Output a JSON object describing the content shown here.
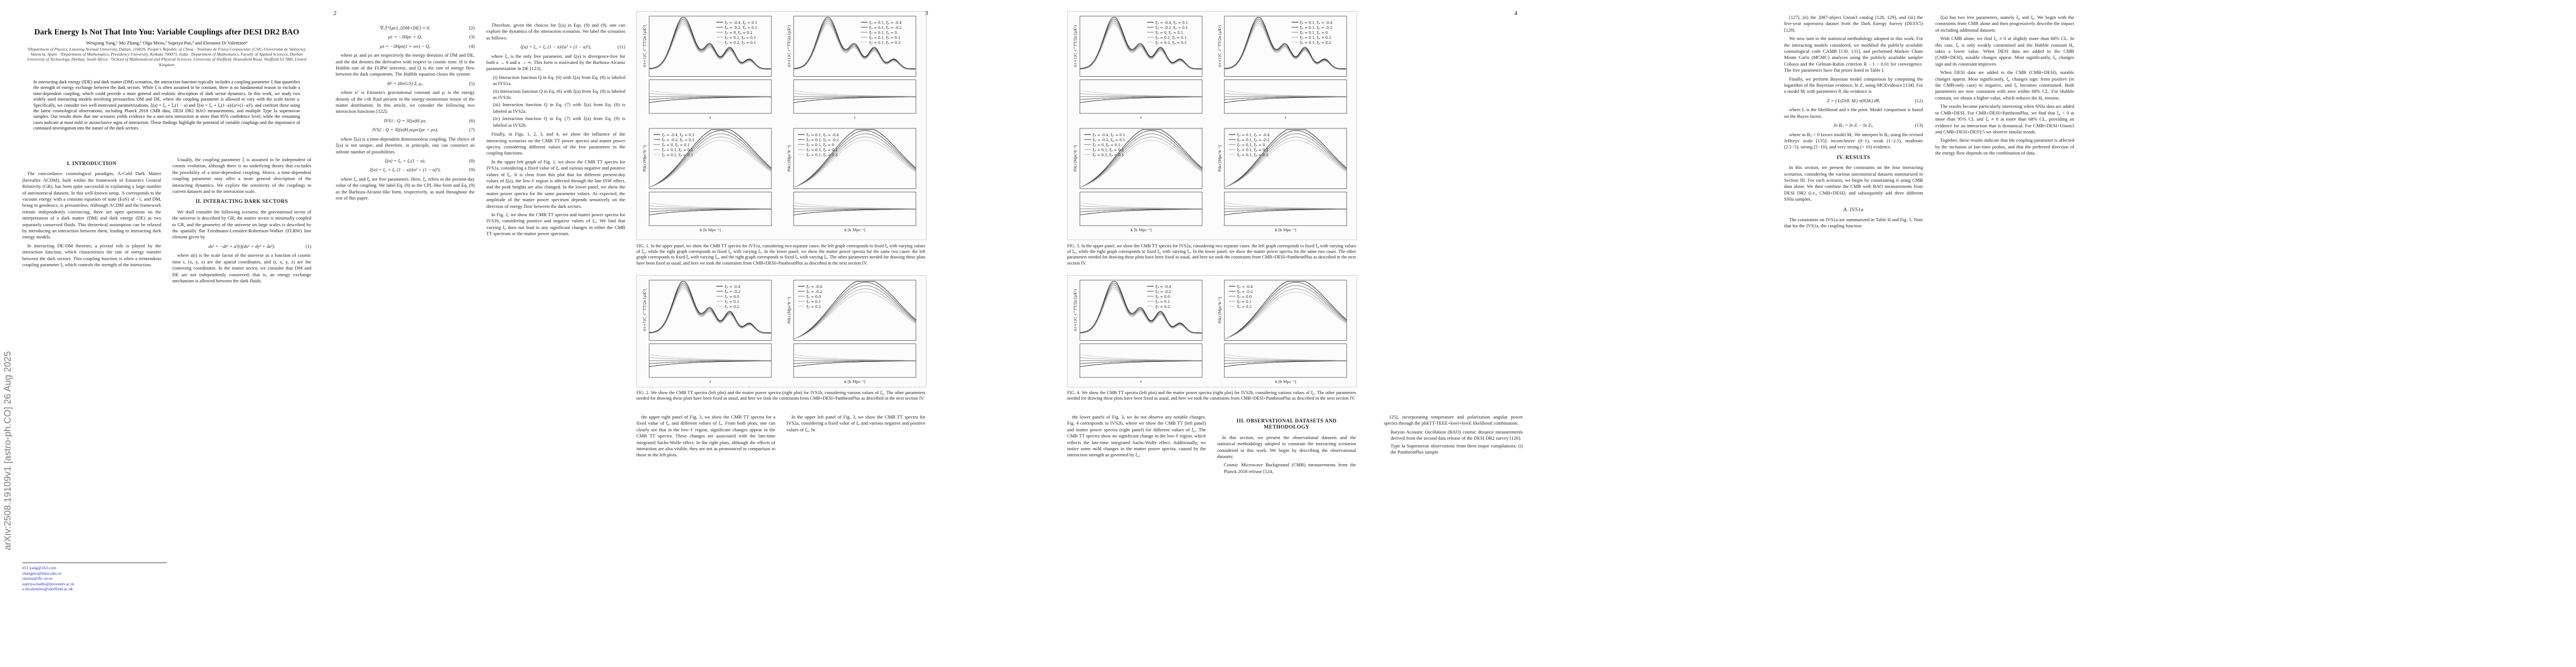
{
  "arxiv_stamp": "arXiv:2508.19109v1  [astro-ph.CO]  26 Aug 2025",
  "page_numbers": [
    "2",
    "3",
    "4"
  ],
  "page1": {
    "title": "Dark Energy Is Not That Into You: Variable Couplings after DESI DR2 BAO",
    "authors": "Weiqiang Yang,¹ Mo Zhang,¹ Olga Mena,² Supriya Pan,³ and Eleonora Di Valentino⁴",
    "affiliations": "¹Department of Physics, Liaoning Normal University, Dalian, 116029, People's Republic of China · ²Instituto de Física Corpuscular (CSIC-Universitat de València), Valencia, Spain · ³Department of Mathematics, Presidency University, Kolkata 700073, India · Department of Mathematics, Faculty of Applied Sciences, Durban University of Technology, Durban, South Africa · ⁴School of Mathematical and Physical Sciences, University of Sheffield, Hounsfield Road, Sheffield S3 7RH, United Kingdom",
    "abstract": "In interacting dark energy (IDE) and dark matter (DM) scenarios, the interaction function typically includes a coupling parameter ξ that quantifies the strength of energy exchange between the dark sectors. While ξ is often assumed to be constant, there is no fundamental reason to exclude a time-dependent coupling, which could provide a more general and realistic description of dark sector dynamics. In this work, we study two widely used interacting models involving pressureless DM and DE, where the coupling parameter is allowed to vary with the scale factor a. Specifically, we consider two well-motivated parametrizations, ξ(a) = ξ₀ + ξₐ(1 − a) and ξ(a) = ξ₀ + ξₐ(1−a)/(a²+(1−a)²), and confront these using the latest cosmological observations, including Planck 2018 CMB data, DESI DR2 BAO measurements, and multiple Type Ia supernovae samples. Our results show that one scenario yields evidence for a non-zero interaction at more than 95% confidence level, while the remaining cases indicate at most mild or inconclusive signs of interaction. These findings highlight the potential of variable couplings and the importance of continued investigation into the nature of the dark sectors.",
    "sec_intro": "I.   INTRODUCTION",
    "intro_p1": "The concordance cosmological paradigm, Λ-Cold Dark Matter (hereafter ΛCDM), built within the framework of Einstein's General Relativity (GR), has been quite successful in explaining a large number of astronomical datasets. In this well-known setup, Λ corresponds to the vacuum energy with a constant equation of state (EoS) of −1, and DM, being in geodesics, is pressureless. Although ΛCDM and the framework remain independently convincing, there are open questions on the interpretation of a dark matter (DM) and dark energy (DE) as two separately conserved fluids. This theoretical assumption can be relaxed by introducing an interaction between them, leading to interacting dark energy models.",
    "intro_p2": "In interacting DE-DM theories, a pivotal role is played by the interaction function, which characterizes the rate of energy transfer between the dark sectors. This coupling function is often a tremendous coupling parameter ξ, which controls the strength of the interaction.",
    "intro_p3": "Usually, the coupling parameter ξ is assumed to be independent of cosmic evolution, although there is no underlying theory that excludes the possibility of a time-dependent coupling. Hence, a time-dependent coupling parameter may offer a more general description of the interacting dynamics. We explore the sensitivity of the couplings to current datasets and to the interaction scale.",
    "sec_ids": "II.   INTERACTING DARK SECTORS",
    "ids_p1": "We shall consider the following scenario: the gravitational sector of the universe is described by GR; the matter sector is minimally coupled to GR, and the geometry of the universe on large scales is described by the spatially flat Friedmann-Lemaître-Robertson-Walker (FLRW) line element given by",
    "eq1": "ds² = −dt² + a²(t)(dx² + dy² + dz²),",
    "eq1_num": "(1)",
    "ids_p2": "where a(t) is the scale factor of the universe as a function of cosmic time t, (x, y, z) are the spatial coordinates, and (t, x, y, z) are the comoving coordinates. In the matter sector, we consider that DM and DE are not independently conserved; that is, an energy exchange mechanism is allowed between the dark fluids.",
    "eq2": "∇ᵤT^{μν}_{DM+DE} = 0,",
    "eq2_num": "(2)",
    "eq3": "ρ̇c = −3Hρc + Q,",
    "eq3_num": "(3)",
    "eq4": "ρ̇x = −3Hρx(1 + wx) − Q,",
    "eq4_num": "(4)",
    "ids_p3": "where ρc and ρx are respectively the energy densities of DM and DE, and the dot denotes the derivative with respect to cosmic time. H is the Hubble rate of the FLRW universe, and Q is the rate of energy flow between the dark components. The Hubble equation closes the system:",
    "eq5": "H² = (8πG/3) Σᵢ ρᵢ,",
    "eq5_num": "(5)",
    "ids_p4": "where κ² is Einstein's gravitational constant and ρᵢ is the energy density of the i-th fluid present in the energy-momentum tensor of the matter distribution. In this article, we consider the following two interaction functions [122]:",
    "eq6": "IVS1 : Q = 3ξ(a)H ρx,",
    "eq6_num": "(6)",
    "eq7": "IVS2 : Q = 3ξ(a)H ρcρx/(ρc + ρx),",
    "eq7_num": "(7)",
    "ids_p5": "where ξ(a) is a time-dependent dimensionless coupling. The choice of ξ(a) is not unique, and therefore, in principle, one can construct an infinite number of possibilities.",
    "eq8": "ξ(a) = ξ₀ + ξₐ(1 − a),",
    "eq8_num": "(8)",
    "eq9": "ξ(a) = ξ₀ + ξₐ (1 − a)/(a² + (1 − a)²),",
    "eq9_num": "(9)",
    "ids_p6": "where ξ₀ and ξₐ are free parameters. Here, ξ₀ refers to the present-day value of the coupling. We label Eq. (8) as the CPL-like form and Eq. (9) as the Barboza-Alcaniz-like form, respectively, as used throughout the rest of this paper.",
    "footnotes": [
      "d11.yang@163.com",
      "zhangmo@lnnu.edu.cn",
      "omena@ific.uv.es",
      "supriya.maths@presiuniv.ac.in",
      "e.divalentino@sheffield.ac.uk"
    ]
  },
  "page2": {
    "intro_p1": "Therefore, given the choices for ξ(a) in Eqs. (8) and (9), one can explore the dynamics of the interaction scenarios. We label the scenarios as follows:",
    "eq11": "ξ(a) = ξ₀ + ξₐ (1 − a)/(a² + (1 − a)²),",
    "eq11_num": "(11)",
    "p2": "where ξ₀ is the only free parameter, and ξ(a) is divergence-free for both a → 0 and a → ∞. This form is motivated by the Barboza-Alcaniz parametrization in DE [123].",
    "list": [
      "(i)  Interaction function Q in Eq. (6) with ξ(a) from Eq. (8) is labeled as IVS1a.",
      "(ii)  Interaction function Q in Eq. (6) with ξ(a) from Eq. (9) is labeled as IVS1b.",
      "(iii)  Interaction function Q in Eq. (7) with ξ(a) from Eq. (8) is labeled as IVS2a.",
      "(iv)  Interaction function Q in Eq. (7) with ξ(a) from Eq. (9) is labeled as IVS2b."
    ],
    "p3": "Finally, in Figs. 1, 2, 3, and 4, we show the influence of the interacting scenarios on the CMB TT power spectra and matter power spectra, considering different values of the free parameters in the coupling functions.",
    "p4": "In the upper left graph of Fig. 1, we show the CMB TT spectra for IVS1a, considering a fixed value of ξₐ and various negative and positive values of ξ₀. It is clear from this plot that for different present-day values of ξ(a), the low-ℓ region is affected through the late ISW effect, and the peak heights are also changed. In the lower panel, we show the matter power spectra for the same parameter values. As expected, the amplitude of the matter power spectrum depends sensitively on the direction of energy flow between the dark sectors.",
    "p5": "In Fig. 2, we show the CMB TT spectra and matter power spectra for IVS1b, considering positive and negative values of ξ₀. We find that varying ξₐ does not lead to any significant changes in either the CMB TT spectrum or the matter power spectrum.",
    "fig1_caption": "FIG. 1. In the upper panel, we show the CMB TT spectra for IVS1a, considering two separate cases: the left graph corresponds to fixed ξₐ with varying values of ξ₀, while the right graph corresponds to fixed ξ₀ with varying ξₐ. In the lower panel, we show the matter power spectra for the same two cases: the left graph corresponds to fixed ξₐ with varying ξ₀, and the right graph corresponds to fixed ξ₀ with varying ξₐ. The other parameters needed for drawing these plots have been fixed as usual, and here we took the constraints from CMB+DESI+PantheonPlus as described in the next section IV.",
    "fig2_caption": "FIG. 2. We show the CMB TT spectra (left plot) and the matter power spectra (right plot) for IVS1b, considering various values of ξ₀. The other parameters needed for drawing these plots have been fixed as usual, and here we took the constraints from CMB+DESI+PantheonPlus as described in the next section IV.",
    "p6": "the upper right panel of Fig. 3, we show the CMB TT spectra for a fixed value of ξ₀ and different values of ξₐ. From both plots, one can clearly see that in the low-ℓ region, significant changes appear in the CMB TT spectra. These changes are associated with the late-time integrated Sachs-Wolfe effect. In the right plots, although the effects of interaction are also visible, they are not as pronounced in comparison to those in the left plots.",
    "p7": "In the upper left panel of Fig. 3, we show the CMB TT spectra for IVS2a, considering a fixed value of ξₐ and various negative and positive values of ξ₀. In"
  },
  "page3": {
    "fig3_caption": "FIG. 3. In the upper panel, we show the CMB TT spectra for IVS2a, considering two separate cases: the left graph corresponds to fixed ξₐ with varying values of ξ₀, while the right graph corresponds to fixed ξ₀ with varying ξₐ. In the lower panel, we show the matter power spectra for the same two cases. The other parameters needed for drawing these plots have been fixed as usual, and here we took the constraints from CMB+DESI+PantheonPlus as described in the next section IV.",
    "fig4_caption": "FIG. 4. We show the CMB TT spectra (left plot) and the matter power spectra (right plot) for IVS2b, considering various values of ξ₀. The other parameters needed for drawing these plots have been fixed as usual, and here we took the constraints from CMB+DESI+PantheonPlus as described in the next section IV.",
    "p1": "the lower panels of Fig. 3, we do not observe any notable changes. Fig. 4 corresponds to IVS2b, where we show the CMB TT (left panel) and matter power spectra (right panel) for different values of ξ₀. The CMB TT spectra show no significant change in the low-ℓ region, which reflects the late-time integrated Sachs-Wolfe effect. Additionally, we notice some mild changes in the matter power spectra, caused by the interaction strength as governed by ξ₀.",
    "sec_obs": "III.   OBSERVATIONAL DATASETS AND METHODOLOGY",
    "p2": "In this section, we present the observational datasets and the statistical methodology adopted to constrain the interacting scenarios considered in this work. We begin by describing the observational datasets:",
    "cmb_item": "Cosmic Microwave Background (CMB) measurements from the Planck 2018 release [124,",
    "p3": "125], incorporating temperature and polarization angular power spectra through the plikTT-TEEE+lowl+lowE likelihood combination.",
    "bao_item": "Baryon Acoustic Oscillation (BAO) cosmic distance measurements derived from the second data release of the DESI DR2 survey [126].",
    "sn_item": "Type Ia Supernovae observations from three major compilations: (i) the PantheonPlus sample"
  },
  "page4": {
    "p1": "[127], (ii) the 2087-object Union3 catalog [128, 129], and (iii) the five-year supernova dataset from the Dark Energy Survey (DESY5) [129].",
    "p2": "We now turn to the statistical methodology adopted in this work. For the interacting models considered, we modified the publicly available cosmological code CAMB [130, 131], and performed Markov Chain Monte Carlo (MCMC) analyses using the publicly available sampler Cobaya and the Gelman-Rubin criterion R − 1 < 0.01 for convergence. The free parameters have flat priors listed in Table I.",
    "p3": "Finally, we perform Bayesian model comparison by computing the logarithm of the Bayesian evidence, ln Z, using MCEvidence [134]. For a model Mᵢ with parameters θ, the evidence is",
    "eq12": "Z = ∫ L(D|θ, Mᵢ) π(θ|Mᵢ) dθ,",
    "eq12_num": "(12)",
    "p4": "where L is the likelihood and π the prior. Model comparison is based on the Bayes factor,",
    "eq13": "ln Bᵢⱼ = ln Zᵢ − ln Zⱼ,",
    "eq13_num": "(13)",
    "p5": "where in Bᵢⱼ > 0 favors model Mᵢ. We interpret ln Bᵢⱼ using the revised Jeffreys' scale [135]: inconclusive (0−1), weak (1−2.5), moderate (2.5−5), strong (5−10), and very strong (> 10) evidence.",
    "sec_results": "IV.   RESULTS",
    "p6": "In this section, we present the constraints on the four interacting scenarios, considering the various astronomical datasets summarized in Section III. For each scenario, we begin by constraining it using CMB data alone. We then combine the CMB with BAO measurements from DESI DR2 (i.e., CMB+DESI), and subsequently add three different SNIa samples.",
    "sub_a": "A.   IVS1a",
    "p7": "The constraints on IVS1a are summarized in Table II and Fig. 5. Note that for the IVS1a, the coupling function",
    "col2_p1": "ξ(a) has two free parameters, namely ξ₀ and ξₐ. We begin with the constraints from CMB alone and then progressively describe the impact of including additional datasets.",
    "col2_p2": "With CMB alone, we find ξ₀ ≠ 0 at slightly more than 68% CL. In this case, ξₐ is only weakly constrained and the Hubble constant H₀ takes a lower value. When DESI data are added to the CMB (CMB+DESI), notable changes appear. Most significantly, ξ₀ changes sign and its constraint improves.",
    "col2_p3": "When DESI data are added to the CMB (CMB+DESI), notable changes appear. Most significantly, ξ₀ changes sign: from positive (in the CMB-only case) to negative, and ξₐ becomes constrained. Both parameters are now consistent with zero within 68% CL. For Hubble constant, we obtain a higher value, which reduces the H₀ tension.",
    "col2_p4": "The results become particularly interesting when SNIa data are added to CMB+DESI. For CMB+DESI+PantheonPlus, we find that ξ₀ < 0 at more than 95% CL and ξₐ ≠ 0 at more than 68% CL, providing an evidence for an interaction that is dynamical. For CMB+DESI+Union3 and CMB+DESI+DESY5 we observe similar trends.",
    "col2_p5": "Together, these results indicate that the coupling parameter is affected by the inclusion of late-time probes, and that the preferred direction of the energy flow depends on the combination of data."
  },
  "figures": {
    "fig1_legend_left": [
      "ξ₀ = -0.4, ξₐ = 0.1",
      "ξ₀ = -0.2, ξₐ = 0.1",
      "ξ₀ = 0, ξₐ = 0.1",
      "ξ₀ = 0.1, ξₐ = 0.1",
      "ξ₀ = 0.2, ξₐ = 0.1"
    ],
    "fig1_legend_right": [
      "ξ₀ = 0.1, ξₐ = -0.4",
      "ξ₀ = 0.1, ξₐ = -0.2",
      "ξ₀ = 0.1, ξₐ = 0",
      "ξ₀ = 0.1, ξₐ = 0.1",
      "ξ₀ = 0.1, ξₐ = 0.2"
    ],
    "fig2_legend": [
      "ξ₀ = -0.4",
      "ξ₀ = -0.2",
      "ξ₀ = 0.0",
      "ξ₀ = 0.1",
      "ξ₀ = 0.2"
    ],
    "tt_ylabel": "ℓ(ℓ+1)C_ℓ^TT/2π [μK²]",
    "tt_xlabel": "ℓ",
    "pk_ylabel": "P(k) [Mpc³h⁻³]",
    "pk_xlabel": "k [h Mpc⁻¹]",
    "line_colors": [
      "#111111",
      "#444444",
      "#777777",
      "#a0a0a0",
      "#c4c4c4"
    ]
  }
}
